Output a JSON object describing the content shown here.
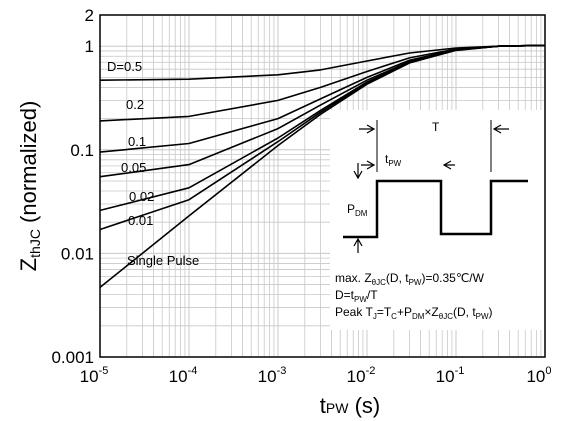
{
  "chart_data": {
    "type": "line",
    "x_scale": "log",
    "y_scale": "log",
    "xlim": [
      1e-05,
      1
    ],
    "ylim": [
      0.001,
      2
    ],
    "grid": true,
    "xlabel": {
      "main": "t",
      "sub": "PW",
      "unit": "(s)"
    },
    "ylabel": {
      "main": "Z",
      "sub": "thJC",
      "unit": "(normalized)"
    },
    "x_ticks": [
      {
        "base": "10",
        "exp": "-5",
        "value": 1e-05
      },
      {
        "base": "10",
        "exp": "-4",
        "value": 0.0001
      },
      {
        "base": "10",
        "exp": "-3",
        "value": 0.001
      },
      {
        "base": "10",
        "exp": "-2",
        "value": 0.01
      },
      {
        "base": "10",
        "exp": "-1",
        "value": 0.1
      },
      {
        "base": "10",
        "exp": "0",
        "value": 1
      }
    ],
    "y_ticks": [
      {
        "label": "2",
        "value": 2
      },
      {
        "label": "1",
        "value": 1
      },
      {
        "label": "0.1",
        "value": 0.1
      },
      {
        "label": "0.01",
        "value": 0.01
      },
      {
        "label": "0.001",
        "value": 0.001
      }
    ],
    "series": [
      {
        "name": "D=0.5",
        "x": [
          1e-05,
          0.0001,
          0.001,
          0.003,
          0.01,
          0.03,
          0.1,
          0.3,
          1
        ],
        "y": [
          0.47,
          0.48,
          0.53,
          0.59,
          0.72,
          0.86,
          0.96,
          1.0,
          1.02
        ]
      },
      {
        "name": "0.2",
        "x": [
          1e-05,
          0.0001,
          0.001,
          0.003,
          0.01,
          0.03,
          0.1,
          0.3,
          1
        ],
        "y": [
          0.19,
          0.21,
          0.3,
          0.4,
          0.57,
          0.77,
          0.94,
          1.0,
          1.02
        ]
      },
      {
        "name": "0.1",
        "x": [
          1e-05,
          0.0001,
          0.001,
          0.003,
          0.01,
          0.03,
          0.1,
          0.3,
          1
        ],
        "y": [
          0.095,
          0.115,
          0.2,
          0.31,
          0.5,
          0.73,
          0.93,
          1.0,
          1.02
        ]
      },
      {
        "name": "0.05",
        "x": [
          1e-05,
          0.0001,
          0.001,
          0.003,
          0.01,
          0.03,
          0.1,
          0.3,
          1
        ],
        "y": [
          0.055,
          0.072,
          0.16,
          0.27,
          0.47,
          0.71,
          0.92,
          1.0,
          1.02
        ]
      },
      {
        "name": "0.02",
        "x": [
          1e-05,
          0.0001,
          0.001,
          0.003,
          0.01,
          0.03,
          0.1,
          0.3,
          1
        ],
        "y": [
          0.026,
          0.043,
          0.13,
          0.24,
          0.45,
          0.7,
          0.92,
          1.0,
          1.02
        ]
      },
      {
        "name": "0.01",
        "x": [
          1e-05,
          0.0001,
          0.001,
          0.003,
          0.01,
          0.03,
          0.1,
          0.3,
          1
        ],
        "y": [
          0.017,
          0.033,
          0.12,
          0.23,
          0.44,
          0.69,
          0.92,
          1.0,
          1.02
        ]
      },
      {
        "name": "Single Pulse",
        "x": [
          1e-05,
          0.0001,
          0.001,
          0.003,
          0.01,
          0.03,
          0.1,
          0.3,
          1
        ],
        "y": [
          0.0047,
          0.023,
          0.11,
          0.22,
          0.43,
          0.69,
          0.91,
          1.0,
          1.02
        ]
      }
    ],
    "annotations": {
      "pulse_period": "T",
      "pulse_width": {
        "main": "t",
        "sub": "PW"
      },
      "power": {
        "main": "P",
        "sub": "DM"
      },
      "line1": [
        {
          "t": "max. Z"
        },
        {
          "s": "θJC"
        },
        {
          "t": "(D, t"
        },
        {
          "s": "PW"
        },
        {
          "t": ")=0.35℃/W"
        }
      ],
      "line2": [
        {
          "t": "D=t"
        },
        {
          "s": "PW"
        },
        {
          "t": "/T"
        }
      ],
      "line3": [
        {
          "t": "Peak T"
        },
        {
          "s": "J"
        },
        {
          "t": "=T"
        },
        {
          "s": "C"
        },
        {
          "t": "+P"
        },
        {
          "s": "DM"
        },
        {
          "t": "×Z"
        },
        {
          "s": "θJC"
        },
        {
          "t": "(D, t"
        },
        {
          "s": "PW"
        },
        {
          "t": ")"
        }
      ]
    },
    "colors": {
      "curve": "#000000",
      "grid": "#c8c8c8",
      "axis": "#000000"
    }
  }
}
